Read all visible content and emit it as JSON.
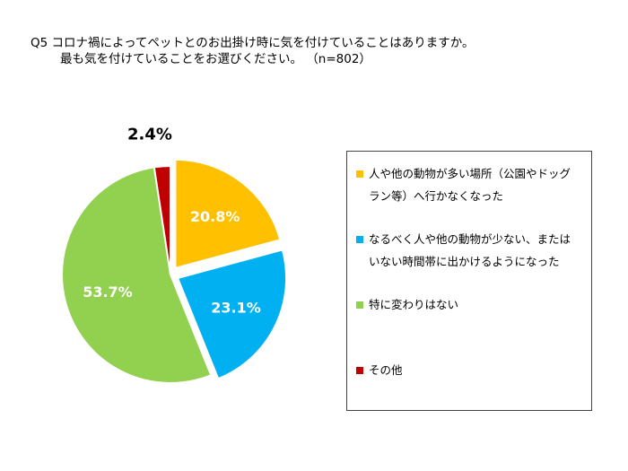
{
  "question": {
    "line1": "Q5 コロナ禍によってペットとのお出掛け時に気を付けていることはありますか。",
    "line2": "最も気を付けていることをお選びください。 （n=802）"
  },
  "chart_data": {
    "type": "pie",
    "title": "",
    "unit": "%",
    "categories": [
      "人や他の動物が多い場所（公園やドッグラン等）へ行かなくなった",
      "なるべく人や他の動物が少ない、またはいない時間帯に出かけるようになった",
      "特に変わりはない",
      "その他"
    ],
    "values": [
      20.8,
      23.1,
      53.7,
      2.4
    ],
    "value_labels": [
      "20.8%",
      "23.1%",
      "53.7%",
      "2.4%"
    ],
    "colors": [
      "#FFC000",
      "#00B0F0",
      "#92D050",
      "#C00000"
    ],
    "exploded": [
      true,
      true,
      false,
      false
    ],
    "start_angle": "12 o'clock",
    "direction": "clockwise",
    "legend_position": "right"
  },
  "legend": [
    {
      "lines": [
        "人や他の動物が多い場所（公園やドッグ",
        "ラン等）へ行かなくなった"
      ],
      "color": "#FFC000"
    },
    {
      "lines": [
        "なるべく人や他の動物が少ない、または",
        "いない時間帯に出かけるようになった"
      ],
      "color": "#00B0F0"
    },
    {
      "lines": [
        "特に変わりはない"
      ],
      "color": "#92D050"
    },
    {
      "lines": [
        "その他"
      ],
      "color": "#C00000"
    }
  ]
}
